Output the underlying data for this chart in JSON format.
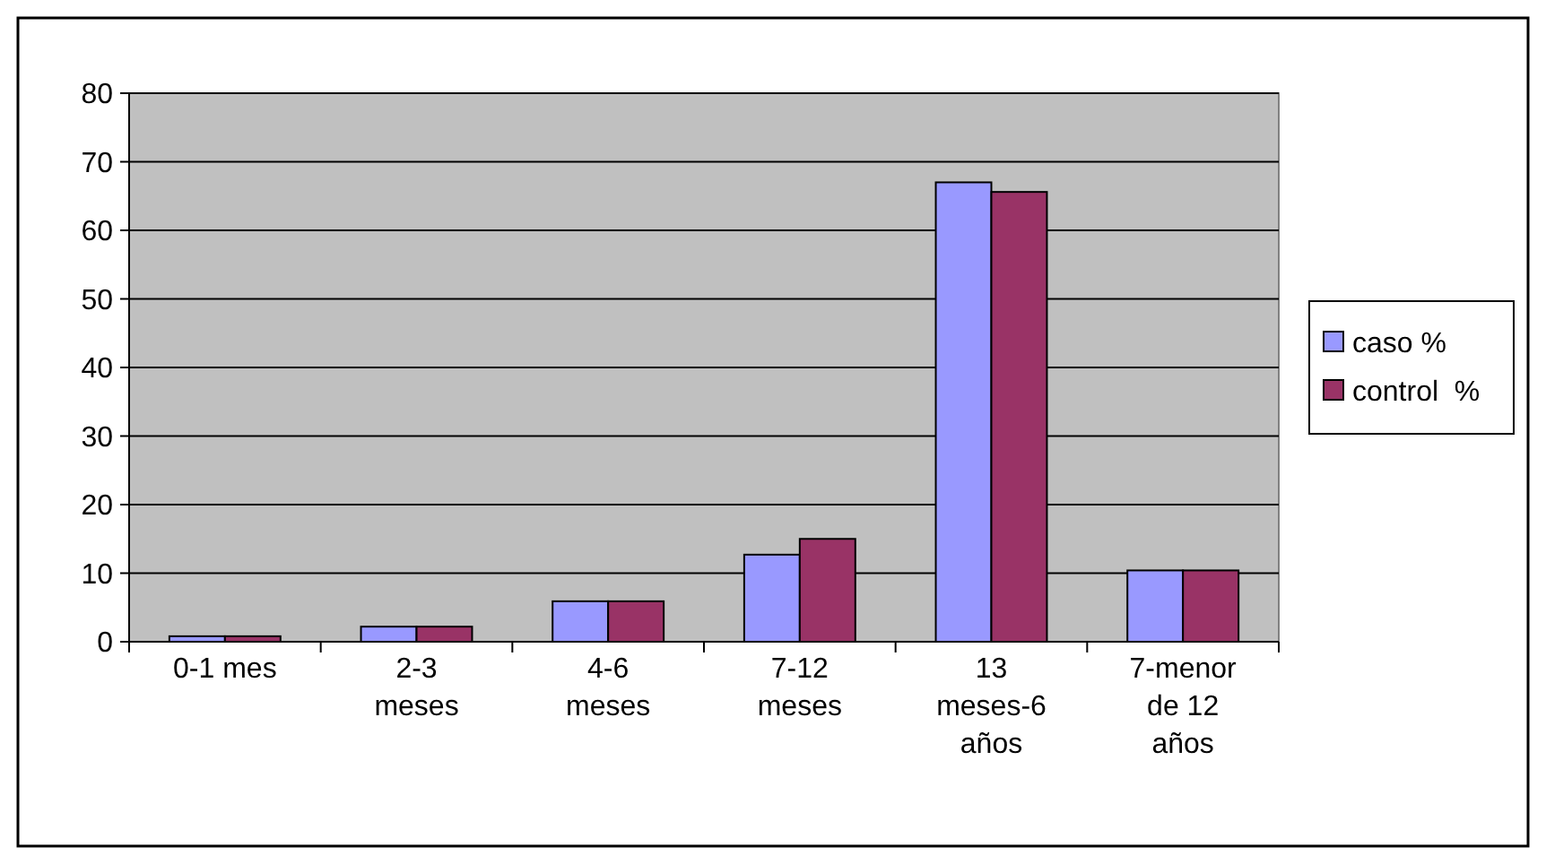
{
  "chart_data": {
    "type": "bar",
    "categories": [
      "0-1 mes",
      "2-3 meses",
      "4-6 meses",
      "7-12 meses",
      "13 meses-6 años",
      "7-menor de 12 años"
    ],
    "series": [
      {
        "name": "caso %",
        "color": "#9999ff",
        "values": [
          0.8,
          2.2,
          5.9,
          12.7,
          67.0,
          10.4
        ]
      },
      {
        "name": "control  %",
        "color": "#993366",
        "values": [
          0.8,
          2.2,
          5.9,
          15.0,
          65.6,
          10.4
        ]
      }
    ],
    "ylim": [
      0,
      80
    ],
    "yticks": [
      0,
      10,
      20,
      30,
      40,
      50,
      60,
      70,
      80
    ],
    "grid": "y",
    "legend": "right"
  }
}
